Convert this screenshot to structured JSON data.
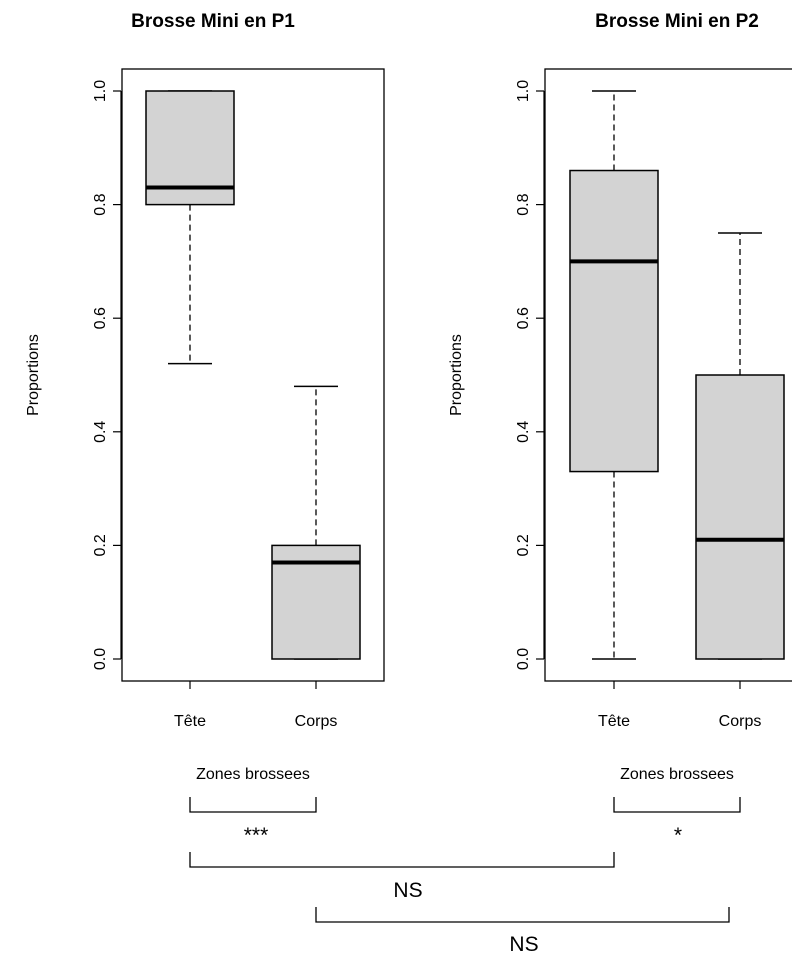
{
  "colors": {
    "box_fill": "#d3d3d3",
    "stroke": "#000000",
    "background": "#ffffff"
  },
  "chart_data": [
    {
      "type": "boxplot",
      "title": "Brosse Mini en P1",
      "xlabel": "Zones brossees",
      "ylabel": "Proportions",
      "ylim": [
        0.0,
        1.0
      ],
      "yticks": [
        "0.0",
        "0.2",
        "0.4",
        "0.6",
        "0.8",
        "1.0"
      ],
      "categories": [
        "Tête",
        "Corps"
      ],
      "boxes": [
        {
          "whisker_low": 0.52,
          "q1": 0.8,
          "median": 0.83,
          "q3": 1.0,
          "whisker_high": 1.0
        },
        {
          "whisker_low": 0.0,
          "q1": 0.0,
          "median": 0.17,
          "q3": 0.2,
          "whisker_high": 0.48
        }
      ]
    },
    {
      "type": "boxplot",
      "title": "Brosse Mini en P2",
      "xlabel": "Zones brossees",
      "ylabel": "Proportions",
      "ylim": [
        0.0,
        1.0
      ],
      "yticks": [
        "0.0",
        "0.2",
        "0.4",
        "0.6",
        "0.8",
        "1.0"
      ],
      "categories": [
        "Tête",
        "Corps"
      ],
      "boxes": [
        {
          "whisker_low": 0.0,
          "q1": 0.33,
          "median": 0.7,
          "q3": 0.86,
          "whisker_high": 1.0
        },
        {
          "whisker_low": 0.0,
          "q1": 0.0,
          "median": 0.21,
          "q3": 0.5,
          "whisker_high": 0.75
        }
      ]
    }
  ],
  "comparisons": [
    {
      "from": "P1 Tête",
      "to": "P1 Corps",
      "label": "***"
    },
    {
      "from": "P2 Tête",
      "to": "P2 Corps",
      "label": "*"
    },
    {
      "from": "P1 Tête",
      "to": "P2 Tête",
      "label": "NS"
    },
    {
      "from": "P1 Corps",
      "to": "P2 Corps",
      "label": "NS"
    }
  ]
}
